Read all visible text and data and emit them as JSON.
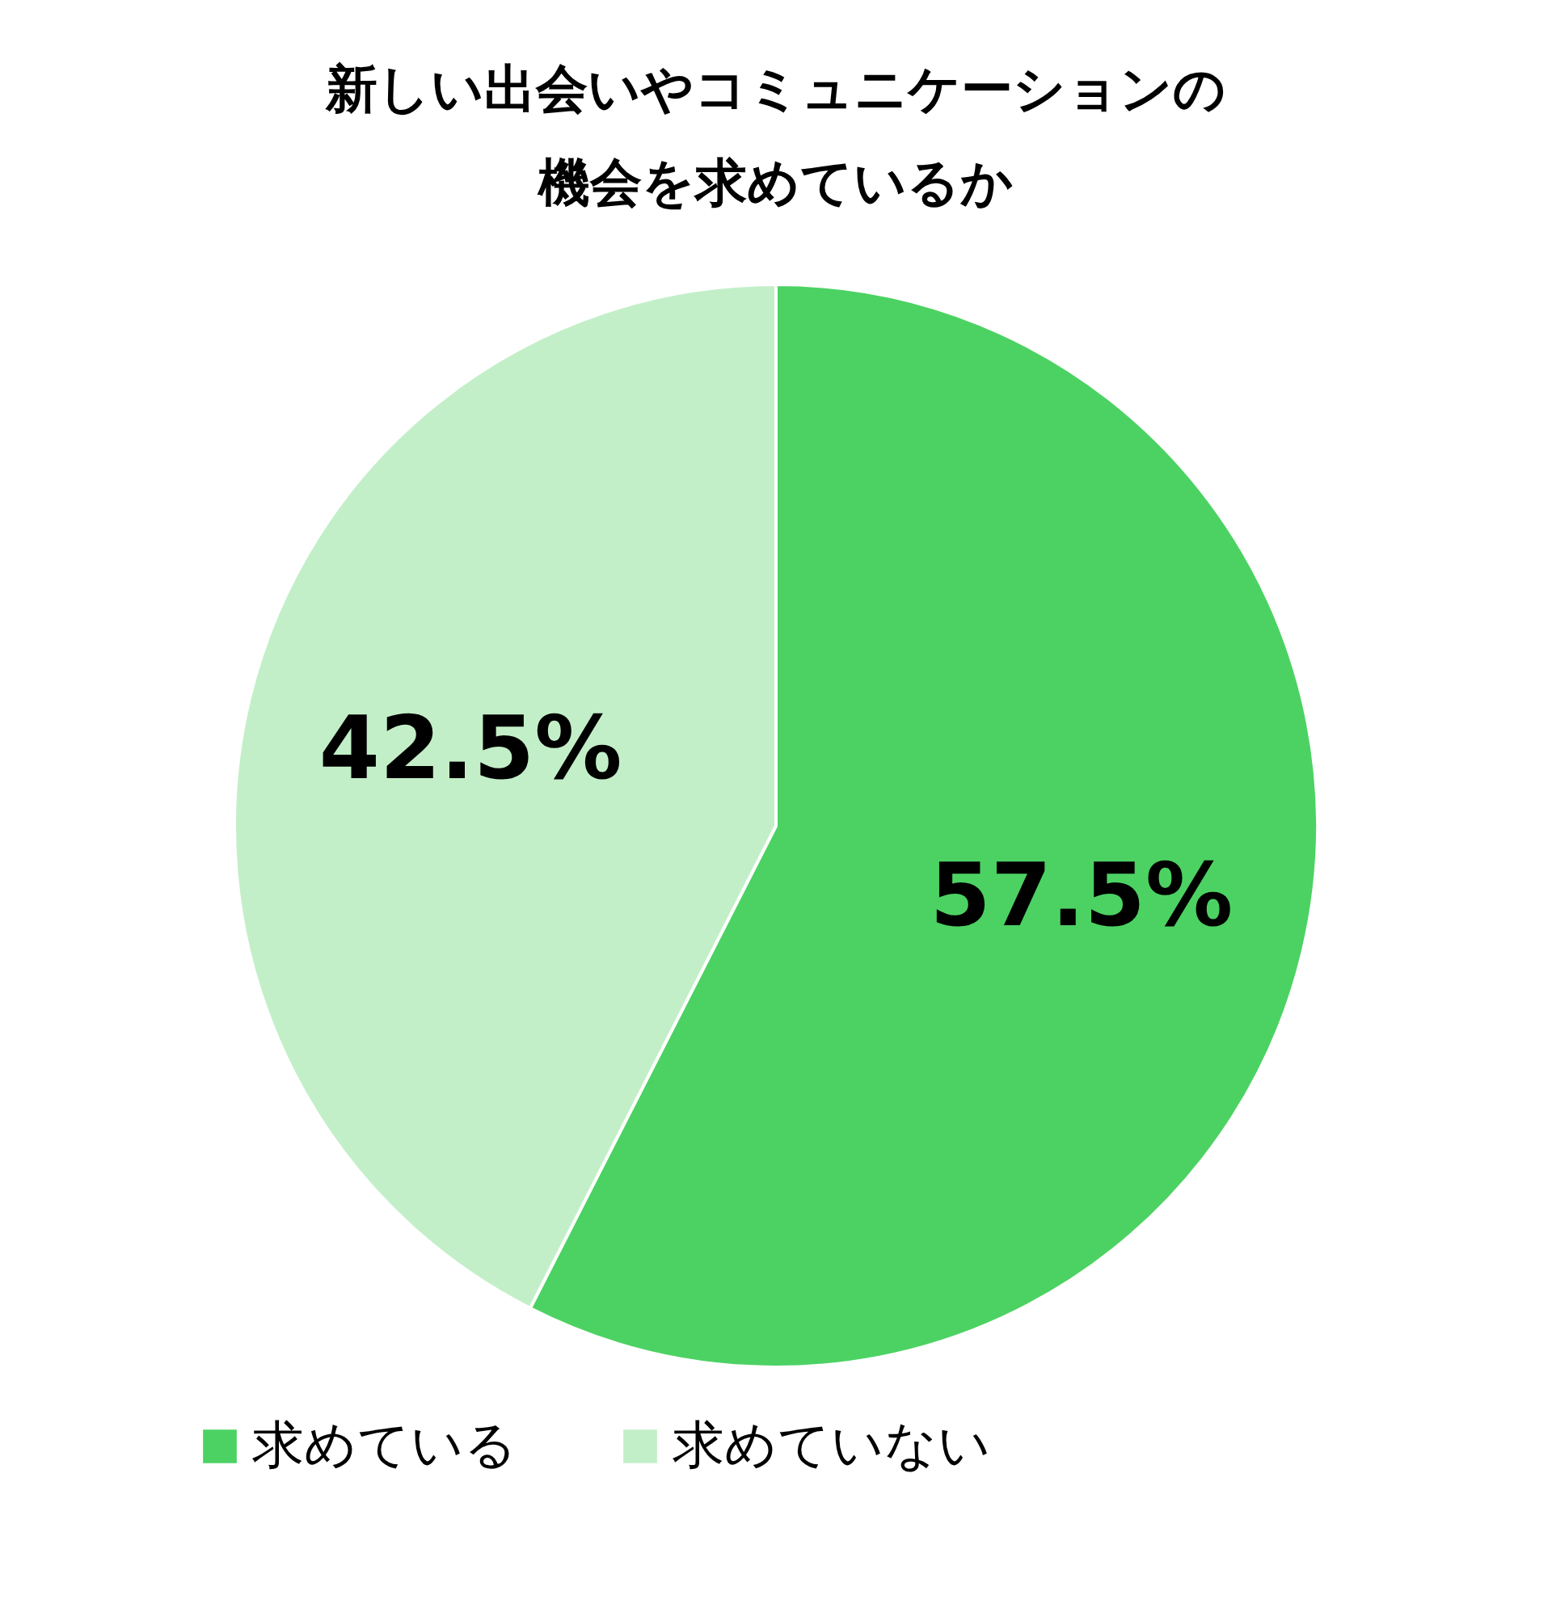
{
  "chart_data": {
    "type": "pie",
    "title": [
      "新しい出会いやコミュニケーションの",
      "機会を求めているか"
    ],
    "categories": [
      "求めている",
      "求めていない"
    ],
    "values": [
      57.5,
      42.5
    ],
    "colors": [
      "#4cd263",
      "#c3efc8"
    ],
    "value_labels": [
      "57.5%",
      "42.5%"
    ],
    "legend": "bottom"
  }
}
